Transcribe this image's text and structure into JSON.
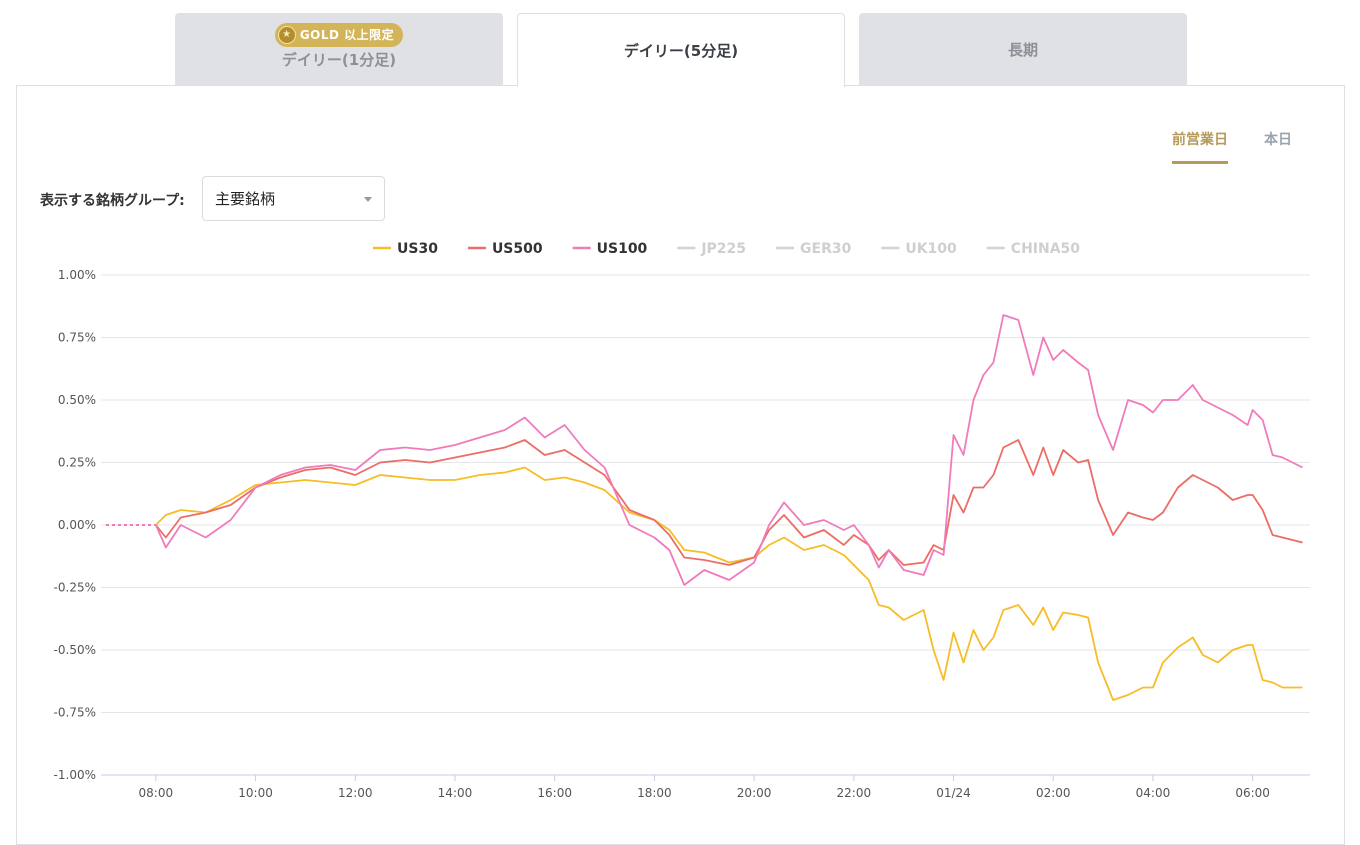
{
  "tabs": [
    {
      "label": "デイリー(1分足)",
      "badge": "GOLD 以上限定"
    },
    {
      "label": "デイリー(5分足)"
    },
    {
      "label": "長期"
    }
  ],
  "toggle": {
    "prev_day": "前営業日",
    "today": "本日"
  },
  "group_selector": {
    "label": "表示する銘柄グループ:",
    "value": "主要銘柄"
  },
  "colors": {
    "accent": "#b69a5a",
    "gold_badge": "#d4b459"
  },
  "chart_data": {
    "type": "line",
    "x_ticks": [
      "08:00",
      "10:00",
      "12:00",
      "14:00",
      "16:00",
      "18:00",
      "20:00",
      "22:00",
      "01/24",
      "02:00",
      "04:00",
      "06:00"
    ],
    "y_ticks": [
      "1.00%",
      "0.75%",
      "0.50%",
      "0.25%",
      "0.00%",
      "-0.25%",
      "-0.50%",
      "-0.75%",
      "-1.00%"
    ],
    "ylim": [
      -1.0,
      1.0
    ],
    "xlim_hours": [
      6.9,
      31.15
    ],
    "x_unit": "hours from 00:00 (24h clock, 01/24 = 24:00)",
    "grid": true,
    "legend_position": "top-center",
    "legend": [
      {
        "name": "US30",
        "color": "#f6bd27",
        "active": true
      },
      {
        "name": "US500",
        "color": "#ec6d66",
        "active": true
      },
      {
        "name": "US100",
        "color": "#f07bbb",
        "active": true
      },
      {
        "name": "JP225",
        "color": "#d3d3d3",
        "active": false
      },
      {
        "name": "GER30",
        "color": "#d3d3d3",
        "active": false
      },
      {
        "name": "UK100",
        "color": "#d3d3d3",
        "active": false
      },
      {
        "name": "CHINA50",
        "color": "#d3d3d3",
        "active": false
      }
    ],
    "series": [
      {
        "name": "US30",
        "color": "#f6bd27",
        "values": [
          [
            7.0,
            0.0
          ],
          [
            8.0,
            0.0
          ],
          [
            8.2,
            0.04
          ],
          [
            8.5,
            0.06
          ],
          [
            9.0,
            0.05
          ],
          [
            9.5,
            0.1
          ],
          [
            10.0,
            0.16
          ],
          [
            10.5,
            0.17
          ],
          [
            11.0,
            0.18
          ],
          [
            11.5,
            0.17
          ],
          [
            12.0,
            0.16
          ],
          [
            12.5,
            0.2
          ],
          [
            13.0,
            0.19
          ],
          [
            13.5,
            0.18
          ],
          [
            14.0,
            0.18
          ],
          [
            14.5,
            0.2
          ],
          [
            15.0,
            0.21
          ],
          [
            15.4,
            0.23
          ],
          [
            15.8,
            0.18
          ],
          [
            16.2,
            0.19
          ],
          [
            16.6,
            0.17
          ],
          [
            17.0,
            0.14
          ],
          [
            17.5,
            0.05
          ],
          [
            18.0,
            0.02
          ],
          [
            18.3,
            -0.02
          ],
          [
            18.6,
            -0.1
          ],
          [
            19.0,
            -0.11
          ],
          [
            19.5,
            -0.15
          ],
          [
            20.0,
            -0.13
          ],
          [
            20.3,
            -0.08
          ],
          [
            20.6,
            -0.05
          ],
          [
            21.0,
            -0.1
          ],
          [
            21.4,
            -0.08
          ],
          [
            21.8,
            -0.12
          ],
          [
            22.0,
            -0.16
          ],
          [
            22.3,
            -0.22
          ],
          [
            22.5,
            -0.32
          ],
          [
            22.7,
            -0.33
          ],
          [
            23.0,
            -0.38
          ],
          [
            23.4,
            -0.34
          ],
          [
            23.6,
            -0.5
          ],
          [
            23.8,
            -0.62
          ],
          [
            24.0,
            -0.43
          ],
          [
            24.2,
            -0.55
          ],
          [
            24.4,
            -0.42
          ],
          [
            24.6,
            -0.5
          ],
          [
            24.8,
            -0.45
          ],
          [
            25.0,
            -0.34
          ],
          [
            25.3,
            -0.32
          ],
          [
            25.6,
            -0.4
          ],
          [
            25.8,
            -0.33
          ],
          [
            26.0,
            -0.42
          ],
          [
            26.2,
            -0.35
          ],
          [
            26.5,
            -0.36
          ],
          [
            26.7,
            -0.37
          ],
          [
            26.9,
            -0.55
          ],
          [
            27.2,
            -0.7
          ],
          [
            27.5,
            -0.68
          ],
          [
            27.8,
            -0.65
          ],
          [
            28.0,
            -0.65
          ],
          [
            28.2,
            -0.55
          ],
          [
            28.5,
            -0.49
          ],
          [
            28.8,
            -0.45
          ],
          [
            29.0,
            -0.52
          ],
          [
            29.3,
            -0.55
          ],
          [
            29.6,
            -0.5
          ],
          [
            29.9,
            -0.48
          ],
          [
            30.0,
            -0.48
          ],
          [
            30.2,
            -0.62
          ],
          [
            30.4,
            -0.63
          ],
          [
            30.6,
            -0.65
          ],
          [
            31.0,
            -0.65
          ]
        ]
      },
      {
        "name": "US500",
        "color": "#ec6d66",
        "values": [
          [
            7.0,
            0.0
          ],
          [
            8.0,
            0.0
          ],
          [
            8.2,
            -0.05
          ],
          [
            8.5,
            0.03
          ],
          [
            9.0,
            0.05
          ],
          [
            9.5,
            0.08
          ],
          [
            10.0,
            0.15
          ],
          [
            10.5,
            0.19
          ],
          [
            11.0,
            0.22
          ],
          [
            11.5,
            0.23
          ],
          [
            12.0,
            0.2
          ],
          [
            12.5,
            0.25
          ],
          [
            13.0,
            0.26
          ],
          [
            13.5,
            0.25
          ],
          [
            14.0,
            0.27
          ],
          [
            14.5,
            0.29
          ],
          [
            15.0,
            0.31
          ],
          [
            15.4,
            0.34
          ],
          [
            15.8,
            0.28
          ],
          [
            16.2,
            0.3
          ],
          [
            16.6,
            0.25
          ],
          [
            17.0,
            0.2
          ],
          [
            17.5,
            0.06
          ],
          [
            18.0,
            0.02
          ],
          [
            18.3,
            -0.04
          ],
          [
            18.6,
            -0.13
          ],
          [
            19.0,
            -0.14
          ],
          [
            19.5,
            -0.16
          ],
          [
            20.0,
            -0.13
          ],
          [
            20.3,
            -0.02
          ],
          [
            20.6,
            0.04
          ],
          [
            21.0,
            -0.05
          ],
          [
            21.4,
            -0.02
          ],
          [
            21.8,
            -0.08
          ],
          [
            22.0,
            -0.04
          ],
          [
            22.3,
            -0.08
          ],
          [
            22.5,
            -0.14
          ],
          [
            22.7,
            -0.1
          ],
          [
            23.0,
            -0.16
          ],
          [
            23.4,
            -0.15
          ],
          [
            23.6,
            -0.08
          ],
          [
            23.8,
            -0.1
          ],
          [
            24.0,
            0.12
          ],
          [
            24.2,
            0.05
          ],
          [
            24.4,
            0.15
          ],
          [
            24.6,
            0.15
          ],
          [
            24.8,
            0.2
          ],
          [
            25.0,
            0.31
          ],
          [
            25.3,
            0.34
          ],
          [
            25.6,
            0.2
          ],
          [
            25.8,
            0.31
          ],
          [
            26.0,
            0.2
          ],
          [
            26.2,
            0.3
          ],
          [
            26.5,
            0.25
          ],
          [
            26.7,
            0.26
          ],
          [
            26.9,
            0.1
          ],
          [
            27.2,
            -0.04
          ],
          [
            27.5,
            0.05
          ],
          [
            27.8,
            0.03
          ],
          [
            28.0,
            0.02
          ],
          [
            28.2,
            0.05
          ],
          [
            28.5,
            0.15
          ],
          [
            28.8,
            0.2
          ],
          [
            29.0,
            0.18
          ],
          [
            29.3,
            0.15
          ],
          [
            29.6,
            0.1
          ],
          [
            29.9,
            0.12
          ],
          [
            30.0,
            0.12
          ],
          [
            30.2,
            0.06
          ],
          [
            30.4,
            -0.04
          ],
          [
            30.6,
            -0.05
          ],
          [
            31.0,
            -0.07
          ]
        ]
      },
      {
        "name": "US100",
        "color": "#f07bbb",
        "values": [
          [
            7.0,
            0.0
          ],
          [
            8.0,
            0.0
          ],
          [
            8.2,
            -0.09
          ],
          [
            8.5,
            0.0
          ],
          [
            9.0,
            -0.05
          ],
          [
            9.5,
            0.02
          ],
          [
            10.0,
            0.15
          ],
          [
            10.5,
            0.2
          ],
          [
            11.0,
            0.23
          ],
          [
            11.5,
            0.24
          ],
          [
            12.0,
            0.22
          ],
          [
            12.5,
            0.3
          ],
          [
            13.0,
            0.31
          ],
          [
            13.5,
            0.3
          ],
          [
            14.0,
            0.32
          ],
          [
            14.5,
            0.35
          ],
          [
            15.0,
            0.38
          ],
          [
            15.4,
            0.43
          ],
          [
            15.8,
            0.35
          ],
          [
            16.2,
            0.4
          ],
          [
            16.6,
            0.3
          ],
          [
            17.0,
            0.23
          ],
          [
            17.5,
            0.0
          ],
          [
            18.0,
            -0.05
          ],
          [
            18.3,
            -0.1
          ],
          [
            18.6,
            -0.24
          ],
          [
            19.0,
            -0.18
          ],
          [
            19.5,
            -0.22
          ],
          [
            20.0,
            -0.15
          ],
          [
            20.3,
            0.0
          ],
          [
            20.6,
            0.09
          ],
          [
            21.0,
            0.0
          ],
          [
            21.4,
            0.02
          ],
          [
            21.8,
            -0.02
          ],
          [
            22.0,
            0.0
          ],
          [
            22.3,
            -0.08
          ],
          [
            22.5,
            -0.17
          ],
          [
            22.7,
            -0.1
          ],
          [
            23.0,
            -0.18
          ],
          [
            23.4,
            -0.2
          ],
          [
            23.6,
            -0.1
          ],
          [
            23.8,
            -0.12
          ],
          [
            24.0,
            0.36
          ],
          [
            24.2,
            0.28
          ],
          [
            24.4,
            0.5
          ],
          [
            24.6,
            0.6
          ],
          [
            24.8,
            0.65
          ],
          [
            25.0,
            0.84
          ],
          [
            25.3,
            0.82
          ],
          [
            25.6,
            0.6
          ],
          [
            25.8,
            0.75
          ],
          [
            26.0,
            0.66
          ],
          [
            26.2,
            0.7
          ],
          [
            26.5,
            0.65
          ],
          [
            26.7,
            0.62
          ],
          [
            26.9,
            0.44
          ],
          [
            27.2,
            0.3
          ],
          [
            27.5,
            0.5
          ],
          [
            27.8,
            0.48
          ],
          [
            28.0,
            0.45
          ],
          [
            28.2,
            0.5
          ],
          [
            28.5,
            0.5
          ],
          [
            28.8,
            0.56
          ],
          [
            29.0,
            0.5
          ],
          [
            29.3,
            0.47
          ],
          [
            29.6,
            0.44
          ],
          [
            29.9,
            0.4
          ],
          [
            30.0,
            0.46
          ],
          [
            30.2,
            0.42
          ],
          [
            30.4,
            0.28
          ],
          [
            30.6,
            0.27
          ],
          [
            31.0,
            0.23
          ]
        ]
      }
    ]
  }
}
